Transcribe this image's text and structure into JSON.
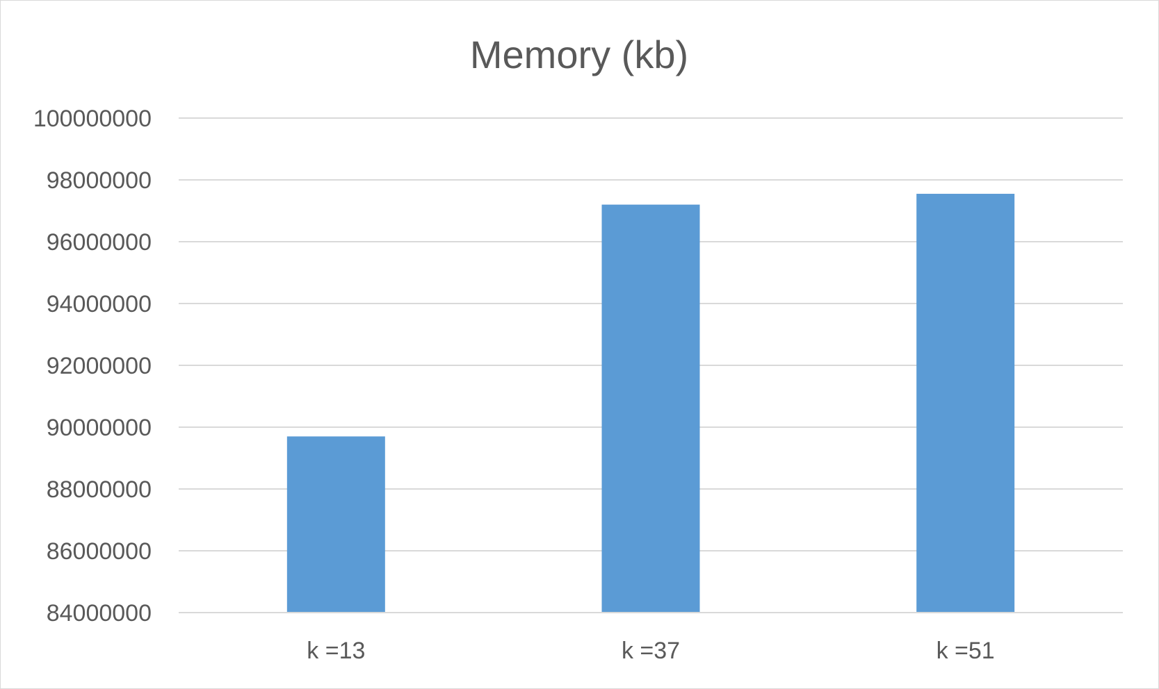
{
  "chart_data": {
    "type": "bar",
    "title": "Memory (kb)",
    "xlabel": "",
    "ylabel": "",
    "categories": [
      "k =13",
      "k =37",
      "k =51"
    ],
    "values": [
      89700000,
      97200000,
      97550000
    ],
    "ylim": [
      84000000,
      100000000
    ],
    "yticks": [
      84000000,
      86000000,
      88000000,
      90000000,
      92000000,
      94000000,
      96000000,
      98000000,
      100000000
    ],
    "ytick_labels": [
      "84000000",
      "86000000",
      "88000000",
      "90000000",
      "92000000",
      "94000000",
      "96000000",
      "98000000",
      "100000000"
    ],
    "grid": true,
    "legend": "none",
    "colors": {
      "bar": "#5b9bd5",
      "grid": "#d9d9d9",
      "text": "#595959"
    }
  }
}
